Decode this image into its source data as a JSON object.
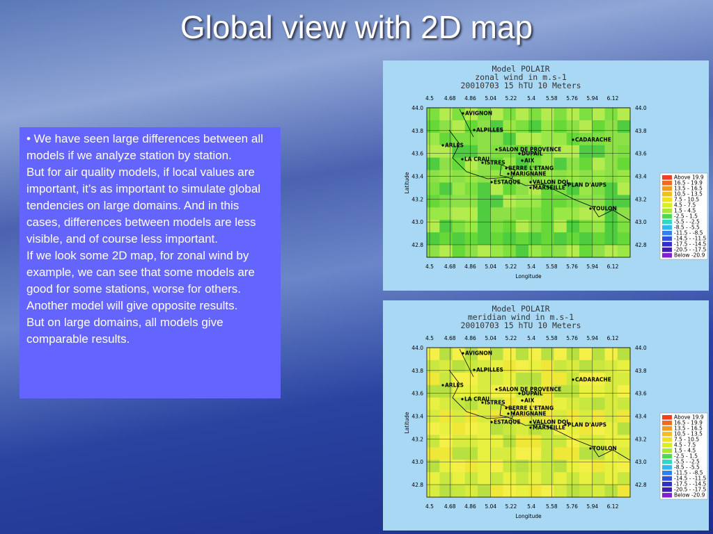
{
  "title": "Global view with 2D map",
  "body": [
    "• We have seen large differences between all models if we analyze station by station.",
    "But for air quality models, if local values are important, it’s as important to simulate global tendencies on large domains. And in this cases, differences between models are less visible, and of course less important.",
    "If we look some 2D map, for zonal wind by example, we can see that some models are good for some stations, worse for others. Another model will give opposite results.",
    "But on large domains, all models give comparable results."
  ],
  "maps": [
    {
      "title": [
        "Model POLAIR",
        "zonal wind in m.s-1",
        "20010703   15 hTU   10 Meters"
      ]
    },
    {
      "title": [
        "Model POLAIR",
        "meridian wind in m.s-1",
        "20010703   15 hTU   10 Meters"
      ]
    }
  ],
  "map_axes": {
    "lon_ticks": [
      "4.5",
      "4.68",
      "4.86",
      "5.04",
      "5.22",
      "5.4",
      "5.58",
      "5.76",
      "5.94",
      "6.12"
    ],
    "lat_ticks": [
      "44.0",
      "43.8",
      "43.6",
      "43.4",
      "43.2",
      "43.0",
      "42.8"
    ],
    "x_label": "Longitude",
    "y_label": "Latitude",
    "stations": [
      "AVIGNON",
      "ALPILLES",
      "CADARACHE",
      "ARLES",
      "SALON DE PROVENCE",
      "DUPAIL",
      "LA CRAU",
      "AIX",
      "ISTRES",
      "BERRE L'ETANG",
      "MARIGNANE",
      "ESTAQUE",
      "VALLON DOL",
      "PLAN D'AUPS",
      "MARSEILLE",
      "TOULON"
    ],
    "legend": [
      "Above   19.9",
      "16.5 - 19.9",
      "13.5 - 16.5",
      "10.5 - 13.5",
      "7.5 - 10.5",
      "4.5 - 7.5",
      "1.5 - 4.5",
      "-2.5 - 1.5",
      "-5.5 - -2.5",
      "-8.5 - -5.5",
      "-11.5 - -8.5",
      "-14.5 - -11.5",
      "-17.5 - -14.5",
      "-20.5 - -17.5",
      "Below  -20.9"
    ]
  }
}
